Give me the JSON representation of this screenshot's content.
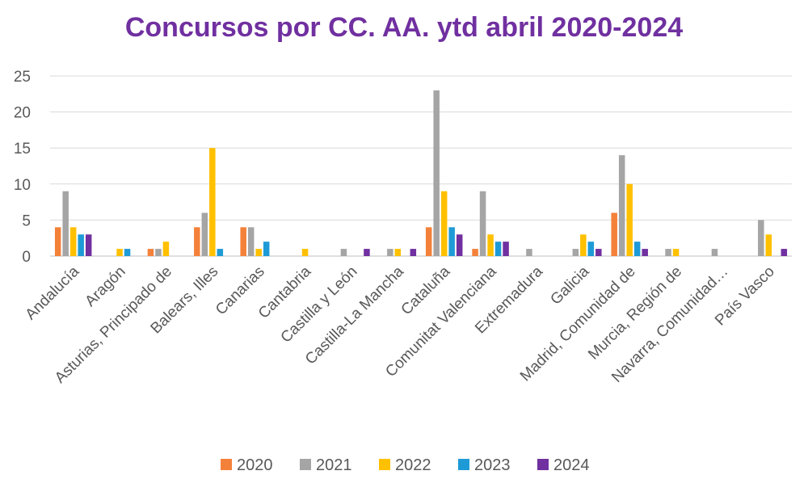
{
  "colors": {
    "title": "#7030A0",
    "gridline": "#D9D9D9",
    "axis": "#BFBFBF",
    "tick_text": "#595959"
  },
  "chart_data": {
    "type": "bar",
    "title": "Concursos por CC. AA. ytd abril 2020-2024",
    "xlabel": "",
    "ylabel": "",
    "ylim": [
      0,
      25
    ],
    "yticks": [
      0,
      5,
      10,
      15,
      20,
      25
    ],
    "grid": true,
    "legend_position": "bottom",
    "categories": [
      "Andalucía",
      "Aragón",
      "Asturias, Principado de",
      "Balears, Illes",
      "Canarias",
      "Cantabria",
      "Castilla y León",
      "Castilla-La Mancha",
      "Cataluña",
      "Comunitat Valenciana",
      "Extremadura",
      "Galicia",
      "Madrid, Comunidad de",
      "Murcia, Región de",
      "Navarra, Comunidad…",
      "País Vasco"
    ],
    "series": [
      {
        "name": "2020",
        "color": "#F4813A",
        "values": [
          4,
          0,
          1,
          4,
          4,
          0,
          0,
          0,
          4,
          1,
          0,
          0,
          6,
          0,
          0,
          0
        ]
      },
      {
        "name": "2021",
        "color": "#A5A5A5",
        "values": [
          9,
          0,
          1,
          6,
          4,
          0,
          1,
          1,
          23,
          9,
          1,
          1,
          14,
          1,
          1,
          5
        ]
      },
      {
        "name": "2022",
        "color": "#FFC000",
        "values": [
          4,
          1,
          2,
          15,
          1,
          1,
          0,
          1,
          9,
          3,
          0,
          3,
          10,
          1,
          0,
          3
        ]
      },
      {
        "name": "2023",
        "color": "#1E9BD7",
        "values": [
          3,
          1,
          0,
          1,
          2,
          0,
          0,
          0,
          4,
          2,
          0,
          2,
          2,
          0,
          0,
          0
        ]
      },
      {
        "name": "2024",
        "color": "#7030A0",
        "values": [
          3,
          0,
          0,
          0,
          0,
          0,
          1,
          1,
          3,
          2,
          0,
          1,
          1,
          0,
          0,
          1
        ]
      }
    ]
  }
}
